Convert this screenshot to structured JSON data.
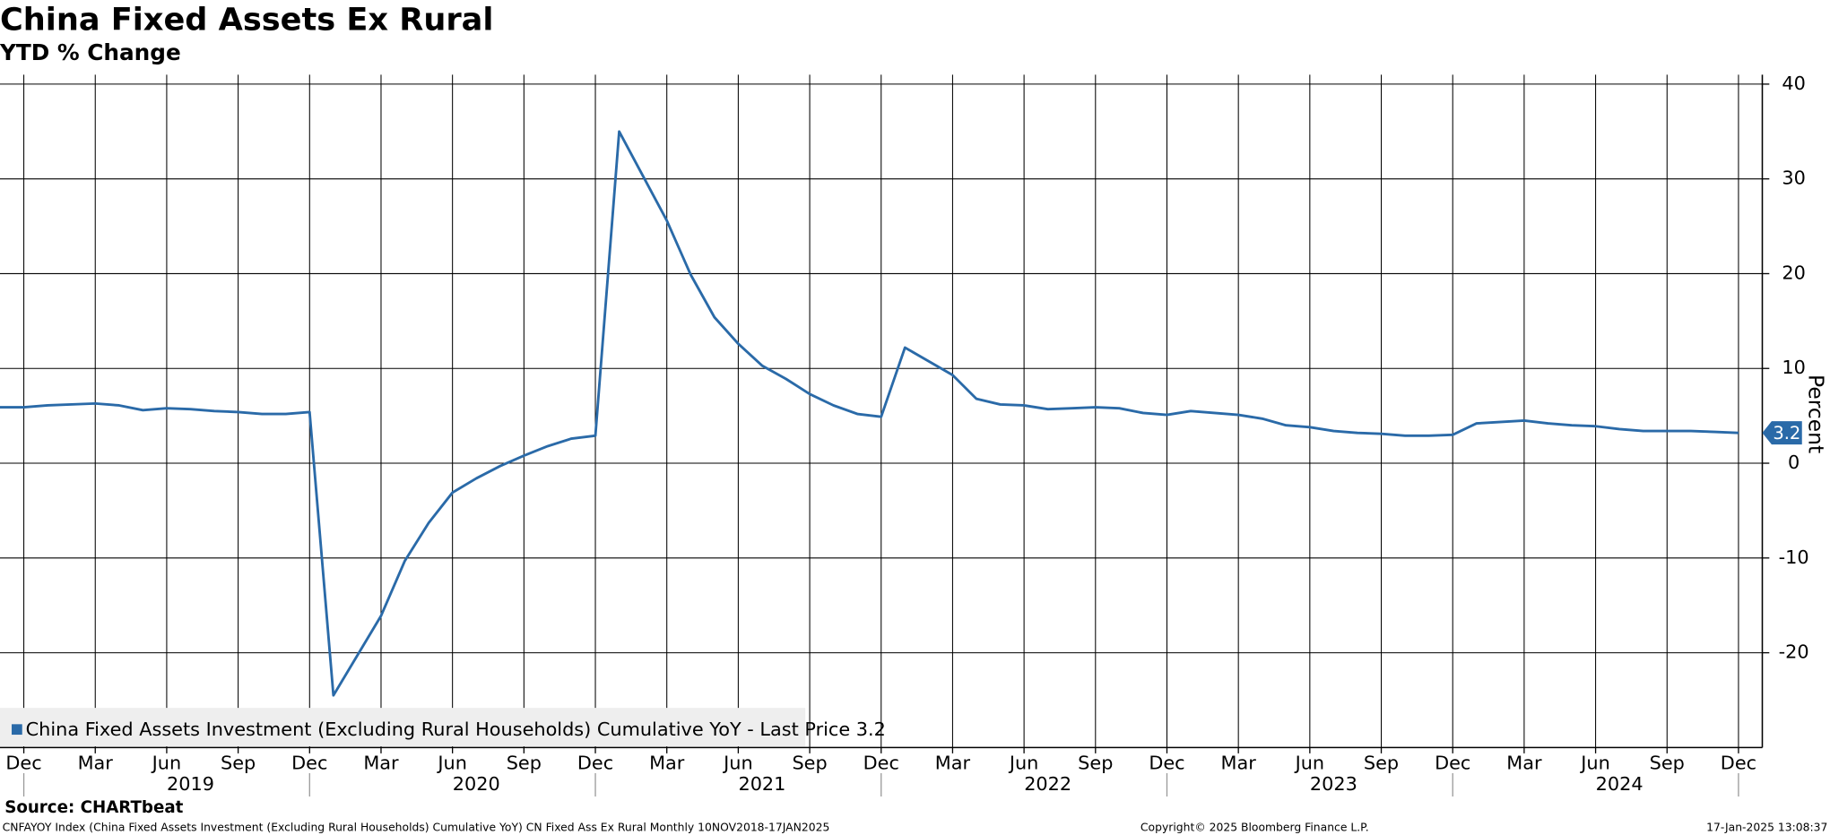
{
  "chart_data": {
    "type": "line",
    "title": "China Fixed Assets Ex Rural",
    "subtitle": "YTD % Change",
    "y_axis_label": "Percent",
    "source": "Source: CHARTbeat",
    "footer_left": "CNFAYOY Index (China Fixed Assets Investment (Excluding Rural Households) Cumulative YoY) CN Fixed Ass Ex Rural  Monthly 10NOV2018-17JAN2025",
    "footer_center": "Copyright© 2025 Bloomberg Finance L.P.",
    "footer_right": "17-Jan-2025 13:08:37",
    "x": [
      "2018-11",
      "2018-12",
      "2019-01",
      "2019-03",
      "2019-04",
      "2019-05",
      "2019-06",
      "2019-07",
      "2019-08",
      "2019-09",
      "2019-10",
      "2019-11",
      "2019-12",
      "2020-01",
      "2020-03",
      "2020-04",
      "2020-05",
      "2020-06",
      "2020-07",
      "2020-08",
      "2020-09",
      "2020-10",
      "2020-11",
      "2020-12",
      "2021-01",
      "2021-03",
      "2021-04",
      "2021-05",
      "2021-06",
      "2021-07",
      "2021-08",
      "2021-09",
      "2021-10",
      "2021-11",
      "2021-12",
      "2022-01",
      "2022-03",
      "2022-04",
      "2022-05",
      "2022-06",
      "2022-07",
      "2022-08",
      "2022-09",
      "2022-10",
      "2022-11",
      "2022-12",
      "2023-01",
      "2023-03",
      "2023-04",
      "2023-05",
      "2023-06",
      "2023-07",
      "2023-08",
      "2023-09",
      "2023-10",
      "2023-11",
      "2023-12",
      "2024-01",
      "2024-03",
      "2024-04",
      "2024-05",
      "2024-06",
      "2024-07",
      "2024-08",
      "2024-09",
      "2024-10",
      "2024-11",
      "2024-12"
    ],
    "series": [
      {
        "name": "China Fixed Assets Investment (Excluding Rural Households) Cumulative YoY - Last Price 3.2",
        "color": "#2a6aa8",
        "values": [
          5.9,
          5.9,
          6.1,
          6.3,
          6.1,
          5.6,
          5.8,
          5.7,
          5.5,
          5.4,
          5.2,
          5.2,
          5.4,
          -24.5,
          -16.1,
          -10.3,
          -6.3,
          -3.1,
          -1.6,
          -0.3,
          0.8,
          1.8,
          2.6,
          2.9,
          35.0,
          25.6,
          19.9,
          15.4,
          12.6,
          10.3,
          8.9,
          7.3,
          6.1,
          5.2,
          4.9,
          12.2,
          9.3,
          6.8,
          6.2,
          6.1,
          5.7,
          5.8,
          5.9,
          5.8,
          5.3,
          5.1,
          5.5,
          5.1,
          4.7,
          4.0,
          3.8,
          3.4,
          3.2,
          3.1,
          2.9,
          2.9,
          3.0,
          4.2,
          4.5,
          4.2,
          4.0,
          3.9,
          3.6,
          3.4,
          3.4,
          3.4,
          3.3,
          3.2
        ]
      }
    ],
    "xlim": [
      "2018-11",
      "2025-01"
    ],
    "xticks": [
      {
        "value": "2018-12",
        "label": "Dec"
      },
      {
        "value": "2019-03",
        "label": "Mar"
      },
      {
        "value": "2019-06",
        "label": "Jun"
      },
      {
        "value": "2019-09",
        "label": "Sep"
      },
      {
        "value": "2019-12",
        "label": "Dec"
      },
      {
        "value": "2020-03",
        "label": "Mar"
      },
      {
        "value": "2020-06",
        "label": "Jun"
      },
      {
        "value": "2020-09",
        "label": "Sep"
      },
      {
        "value": "2020-12",
        "label": "Dec"
      },
      {
        "value": "2021-03",
        "label": "Mar"
      },
      {
        "value": "2021-06",
        "label": "Jun"
      },
      {
        "value": "2021-09",
        "label": "Sep"
      },
      {
        "value": "2021-12",
        "label": "Dec"
      },
      {
        "value": "2022-03",
        "label": "Mar"
      },
      {
        "value": "2022-06",
        "label": "Jun"
      },
      {
        "value": "2022-09",
        "label": "Sep"
      },
      {
        "value": "2022-12",
        "label": "Dec"
      },
      {
        "value": "2023-03",
        "label": "Mar"
      },
      {
        "value": "2023-06",
        "label": "Jun"
      },
      {
        "value": "2023-09",
        "label": "Sep"
      },
      {
        "value": "2023-12",
        "label": "Dec"
      },
      {
        "value": "2024-03",
        "label": "Mar"
      },
      {
        "value": "2024-06",
        "label": "Jun"
      },
      {
        "value": "2024-09",
        "label": "Sep"
      },
      {
        "value": "2024-12",
        "label": "Dec"
      }
    ],
    "year_labels": [
      {
        "value": "2019-07",
        "label": "2019"
      },
      {
        "value": "2020-07",
        "label": "2020"
      },
      {
        "value": "2021-07",
        "label": "2021"
      },
      {
        "value": "2022-07",
        "label": "2022"
      },
      {
        "value": "2023-07",
        "label": "2023"
      },
      {
        "value": "2024-07",
        "label": "2024"
      }
    ],
    "ylim": [
      -30,
      41
    ],
    "yticks": [
      40,
      30,
      20,
      10,
      0,
      -10,
      -20
    ],
    "grid": true
  }
}
